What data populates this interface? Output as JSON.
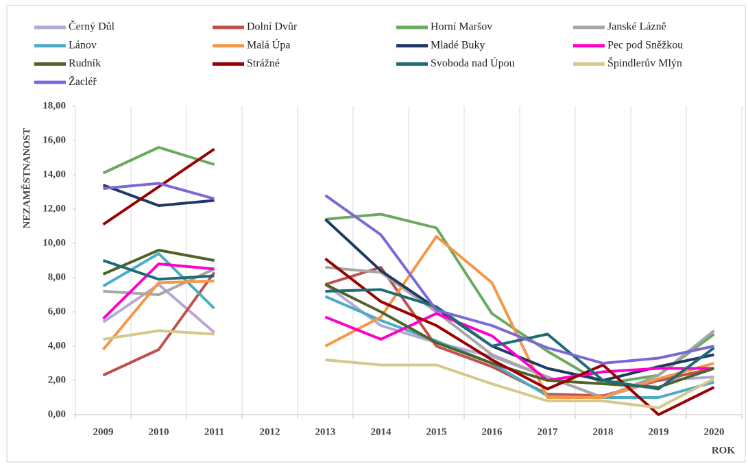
{
  "chart_data": {
    "type": "line",
    "y_label": "NEZAMĚSTNANOST",
    "x_label": "ROK",
    "categories": [
      "2009",
      "2010",
      "2011",
      "2012",
      "2013",
      "2014",
      "2015",
      "2016",
      "2017",
      "2018",
      "2019",
      "2020"
    ],
    "ylim": [
      0,
      18
    ],
    "yticks": [
      {
        "value": 0,
        "label": "0,00"
      },
      {
        "value": 2,
        "label": "2,00"
      },
      {
        "value": 4,
        "label": "4,00"
      },
      {
        "value": 6,
        "label": "6,00"
      },
      {
        "value": 8,
        "label": "8,00"
      },
      {
        "value": 10,
        "label": "10,00"
      },
      {
        "value": 12,
        "label": "12,00"
      },
      {
        "value": 14,
        "label": "14,00"
      },
      {
        "value": 16,
        "label": "16,00"
      },
      {
        "value": 18,
        "label": "18,00"
      }
    ],
    "xgrid": true,
    "legend": "top",
    "series": [
      {
        "name": "Černý Důl",
        "color": "#b4a7d6",
        "values": [
          5.4,
          7.6,
          4.8,
          null,
          7.6,
          5.2,
          4.2,
          3.4,
          2.2,
          1.0,
          2.0,
          2.2
        ]
      },
      {
        "name": "Dolní Dvůr",
        "color": "#c0504d",
        "values": [
          2.3,
          3.8,
          8.3,
          null,
          7.6,
          8.6,
          4.0,
          2.8,
          1.2,
          1.1,
          2.0,
          2.7
        ]
      },
      {
        "name": "Horní Maršov",
        "color": "#6aaa5f",
        "values": [
          14.1,
          15.6,
          14.6,
          null,
          11.4,
          11.7,
          10.9,
          5.9,
          3.7,
          1.8,
          2.3,
          4.7
        ]
      },
      {
        "name": "Janské Lázně",
        "color": "#a6a6a6",
        "values": [
          7.2,
          7.0,
          8.5,
          null,
          8.6,
          8.3,
          6.0,
          3.5,
          2.2,
          1.0,
          2.3,
          4.9
        ]
      },
      {
        "name": "Lánov",
        "color": "#4bacc6",
        "values": [
          7.5,
          9.4,
          6.2,
          null,
          6.9,
          5.5,
          4.3,
          3.0,
          1.1,
          1.0,
          1.0,
          1.9
        ]
      },
      {
        "name": "Malá Úpa",
        "color": "#f79646",
        "values": [
          3.8,
          7.7,
          7.8,
          null,
          4.0,
          5.7,
          10.4,
          7.7,
          1.0,
          1.0,
          2.1,
          3.0
        ]
      },
      {
        "name": "Mladé Buky",
        "color": "#1f3864",
        "values": [
          13.4,
          12.2,
          12.5,
          null,
          11.4,
          8.4,
          6.2,
          4.0,
          2.7,
          2.0,
          2.8,
          3.5
        ]
      },
      {
        "name": "Pec pod Sněžkou",
        "color": "#ff00cc",
        "values": [
          5.6,
          8.8,
          8.5,
          null,
          5.7,
          4.4,
          5.9,
          4.6,
          2.0,
          2.5,
          2.7,
          2.7
        ]
      },
      {
        "name": "Rudník",
        "color": "#4f6228",
        "values": [
          8.2,
          9.6,
          9.0,
          null,
          7.6,
          6.0,
          4.2,
          3.0,
          2.0,
          1.8,
          1.6,
          2.7
        ]
      },
      {
        "name": "Strážné",
        "color": "#990000",
        "values": [
          11.1,
          13.3,
          15.5,
          null,
          9.1,
          6.6,
          5.2,
          3.2,
          1.5,
          2.9,
          0.0,
          1.6
        ]
      },
      {
        "name": "Svoboda nad Úpou",
        "color": "#1f6b75",
        "values": [
          9.0,
          7.9,
          8.1,
          null,
          7.2,
          7.3,
          6.3,
          4.0,
          4.7,
          2.0,
          1.5,
          3.9
        ]
      },
      {
        "name": "Špindlerův Mlýn",
        "color": "#d4c98a",
        "values": [
          4.4,
          4.9,
          4.7,
          null,
          3.2,
          2.9,
          2.9,
          1.8,
          0.8,
          0.8,
          0.4,
          2.1
        ]
      },
      {
        "name": "Žacléř",
        "color": "#7b68d8",
        "values": [
          13.2,
          13.5,
          12.6,
          null,
          12.8,
          10.5,
          6.1,
          5.2,
          3.9,
          3.0,
          3.3,
          4.0
        ]
      }
    ]
  }
}
